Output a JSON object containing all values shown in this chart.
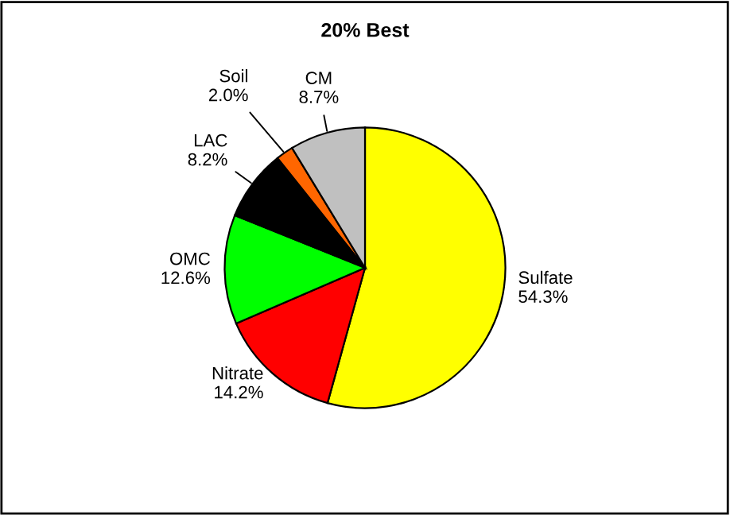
{
  "chart_data": {
    "type": "pie",
    "title": "20% Best",
    "categories": [
      "Sulfate",
      "Nitrate",
      "OMC",
      "LAC",
      "Soil",
      "CM"
    ],
    "values": [
      54.3,
      14.2,
      12.6,
      8.2,
      2.0,
      8.7
    ],
    "value_labels": [
      "54.3%",
      "14.2%",
      "12.6%",
      "8.2%",
      "2.0%",
      "8.7%"
    ],
    "colors": [
      "#ffff00",
      "#ff0000",
      "#00ff00",
      "#000000",
      "#ff6600",
      "#c0c0c0"
    ],
    "legend": false
  }
}
